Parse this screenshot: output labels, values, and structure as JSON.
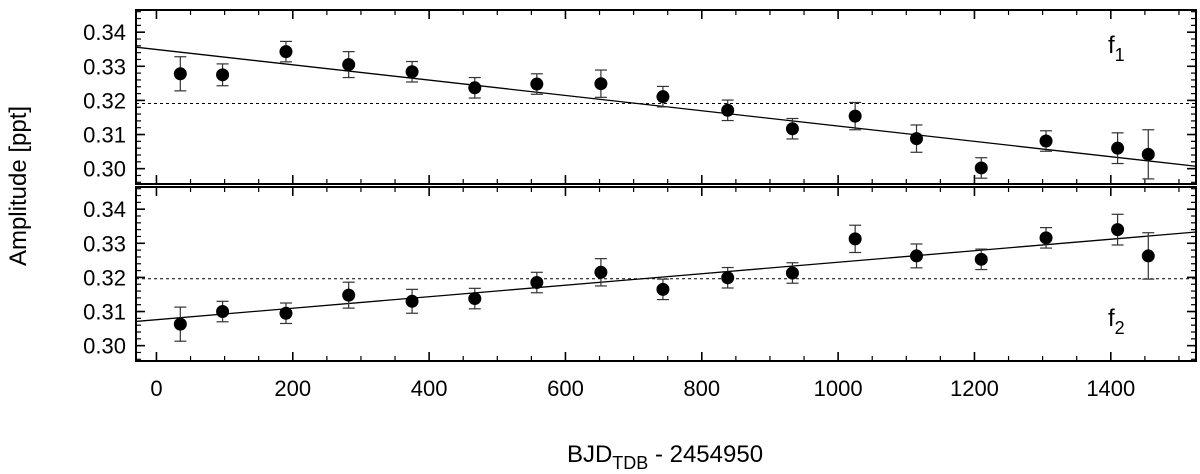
{
  "chart_data": {
    "type": "scatter",
    "xlabel": {
      "main": "BJD",
      "sub": "TDB",
      "rest": " - 2454950"
    },
    "ylabel": "Amplitude [ppt]",
    "xlim": [
      -30,
      1525
    ],
    "xticks": [
      0,
      200,
      400,
      600,
      800,
      1000,
      1200,
      1400
    ],
    "x_minor_step": 50,
    "panels": [
      {
        "label": {
          "main": "f",
          "sub": "1"
        },
        "label_position": "top-right",
        "ylim": [
          0.2955,
          0.3465
        ],
        "yticks": [
          0.3,
          0.31,
          0.32,
          0.33,
          0.34
        ],
        "ytick_labels": [
          "0.30",
          "0.31",
          "0.32",
          "0.33",
          "0.34"
        ],
        "reference_line": 0.3191,
        "fit": {
          "x": [
            -30,
            1525
          ],
          "y": [
            0.3356,
            0.3007
          ]
        },
        "points": [
          {
            "x": 35,
            "y": 0.3278,
            "err": 0.005
          },
          {
            "x": 97,
            "y": 0.3275,
            "err": 0.0032
          },
          {
            "x": 190,
            "y": 0.3343,
            "err": 0.003
          },
          {
            "x": 282,
            "y": 0.3305,
            "err": 0.0038
          },
          {
            "x": 375,
            "y": 0.3284,
            "err": 0.003
          },
          {
            "x": 467,
            "y": 0.3237,
            "err": 0.003
          },
          {
            "x": 558,
            "y": 0.3248,
            "err": 0.003
          },
          {
            "x": 652,
            "y": 0.3249,
            "err": 0.004
          },
          {
            "x": 743,
            "y": 0.3211,
            "err": 0.003
          },
          {
            "x": 838,
            "y": 0.3171,
            "err": 0.003
          },
          {
            "x": 933,
            "y": 0.3117,
            "err": 0.003
          },
          {
            "x": 1025,
            "y": 0.3154,
            "err": 0.004
          },
          {
            "x": 1115,
            "y": 0.3088,
            "err": 0.004
          },
          {
            "x": 1210,
            "y": 0.3002,
            "err": 0.003
          },
          {
            "x": 1305,
            "y": 0.3081,
            "err": 0.003
          },
          {
            "x": 1410,
            "y": 0.306,
            "err": 0.0045
          },
          {
            "x": 1455,
            "y": 0.3042,
            "err": 0.0072
          }
        ]
      },
      {
        "label": {
          "main": "f",
          "sub": "2"
        },
        "label_position": "bottom-right",
        "ylim": [
          0.2955,
          0.3465
        ],
        "yticks": [
          0.3,
          0.31,
          0.32,
          0.33,
          0.34
        ],
        "ytick_labels": [
          "0.30",
          "0.31",
          "0.32",
          "0.33",
          "0.34"
        ],
        "reference_line": 0.3196,
        "fit": {
          "x": [
            -30,
            1525
          ],
          "y": [
            0.3071,
            0.3333
          ]
        },
        "points": [
          {
            "x": 35,
            "y": 0.3063,
            "err": 0.005
          },
          {
            "x": 97,
            "y": 0.31,
            "err": 0.003
          },
          {
            "x": 190,
            "y": 0.3095,
            "err": 0.003
          },
          {
            "x": 282,
            "y": 0.3148,
            "err": 0.0038
          },
          {
            "x": 375,
            "y": 0.313,
            "err": 0.0035
          },
          {
            "x": 467,
            "y": 0.3138,
            "err": 0.003
          },
          {
            "x": 558,
            "y": 0.3185,
            "err": 0.003
          },
          {
            "x": 652,
            "y": 0.3215,
            "err": 0.004
          },
          {
            "x": 743,
            "y": 0.3165,
            "err": 0.003
          },
          {
            "x": 838,
            "y": 0.3199,
            "err": 0.003
          },
          {
            "x": 933,
            "y": 0.3213,
            "err": 0.003
          },
          {
            "x": 1025,
            "y": 0.3313,
            "err": 0.004
          },
          {
            "x": 1115,
            "y": 0.3263,
            "err": 0.0035
          },
          {
            "x": 1210,
            "y": 0.3253,
            "err": 0.003
          },
          {
            "x": 1305,
            "y": 0.3316,
            "err": 0.003
          },
          {
            "x": 1410,
            "y": 0.334,
            "err": 0.0045
          },
          {
            "x": 1455,
            "y": 0.3263,
            "err": 0.0068
          }
        ]
      }
    ]
  }
}
